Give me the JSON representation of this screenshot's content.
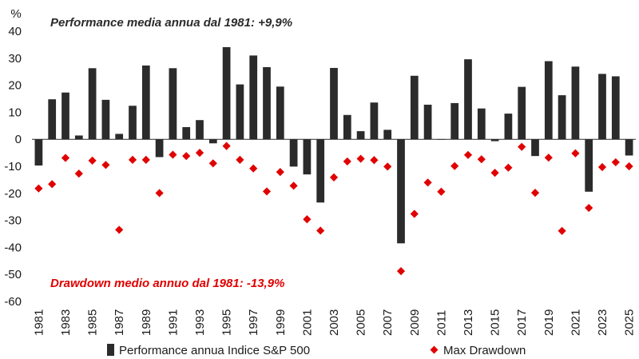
{
  "chart_data": {
    "type": "bar",
    "unit_label": "%",
    "annotation_top": "Performance media annua dal 1981: +9,9%",
    "annotation_bottom": "Drawdown medio annuo dal 1981: -13,9%",
    "ylim": [
      -60,
      40
    ],
    "yticks": [
      40,
      30,
      20,
      10,
      0,
      -10,
      -20,
      -30,
      -40,
      -50,
      -60
    ],
    "grid": false,
    "x": [
      1981,
      1982,
      1983,
      1984,
      1985,
      1986,
      1987,
      1988,
      1989,
      1990,
      1991,
      1992,
      1993,
      1994,
      1995,
      1996,
      1997,
      1998,
      1999,
      2000,
      2001,
      2002,
      2003,
      2004,
      2005,
      2006,
      2007,
      2008,
      2009,
      2010,
      2011,
      2012,
      2013,
      2014,
      2015,
      2016,
      2017,
      2018,
      2019,
      2020,
      2021,
      2022,
      2023,
      2024,
      2025
    ],
    "xtick_labels": [
      "1981",
      "1983",
      "1985",
      "1987",
      "1989",
      "1991",
      "1993",
      "1995",
      "1997",
      "1999",
      "2001",
      "2003",
      "2005",
      "2007",
      "2009",
      "2011",
      "2013",
      "2015",
      "2017",
      "2019",
      "2021",
      "2023",
      "2025"
    ],
    "series": [
      {
        "name": "Performance annua Indice S&P 500",
        "kind": "bar",
        "color": "#2b2b2b",
        "values": [
          -9.7,
          14.8,
          17.3,
          1.4,
          26.3,
          14.6,
          2.0,
          12.4,
          27.3,
          -6.6,
          26.3,
          4.5,
          7.1,
          -1.5,
          34.1,
          20.3,
          31.0,
          26.7,
          19.5,
          -10.1,
          -13.0,
          -23.4,
          26.4,
          9.0,
          3.0,
          13.6,
          3.5,
          -38.5,
          23.5,
          12.8,
          0.0,
          13.4,
          29.6,
          11.4,
          -0.7,
          9.5,
          19.4,
          -6.2,
          28.9,
          16.3,
          26.9,
          -19.4,
          24.2,
          23.3,
          -6.0
        ]
      },
      {
        "name": "Max Drawdown",
        "kind": "scatter",
        "color": "#e00000",
        "values": [
          -18.2,
          -16.6,
          -6.9,
          -12.7,
          -7.9,
          -9.5,
          -33.5,
          -7.6,
          -7.6,
          -19.9,
          -5.7,
          -6.2,
          -5.0,
          -8.9,
          -2.5,
          -7.6,
          -10.8,
          -19.3,
          -12.1,
          -17.2,
          -29.6,
          -33.8,
          -14.1,
          -8.2,
          -7.2,
          -7.7,
          -10.1,
          -48.8,
          -27.6,
          -16.0,
          -19.4,
          -9.9,
          -5.8,
          -7.4,
          -12.4,
          -10.5,
          -2.8,
          -19.8,
          -6.8,
          -33.9,
          -5.2,
          -25.4,
          -10.3,
          -8.5,
          -10.0
        ]
      }
    ],
    "legend": [
      {
        "label": "Performance annua Indice S&P 500",
        "symbol": "bar",
        "color": "#2b2b2b"
      },
      {
        "label": "Max Drawdown",
        "symbol": "diamond",
        "color": "#e00000"
      }
    ],
    "legend_position": "bottom"
  }
}
